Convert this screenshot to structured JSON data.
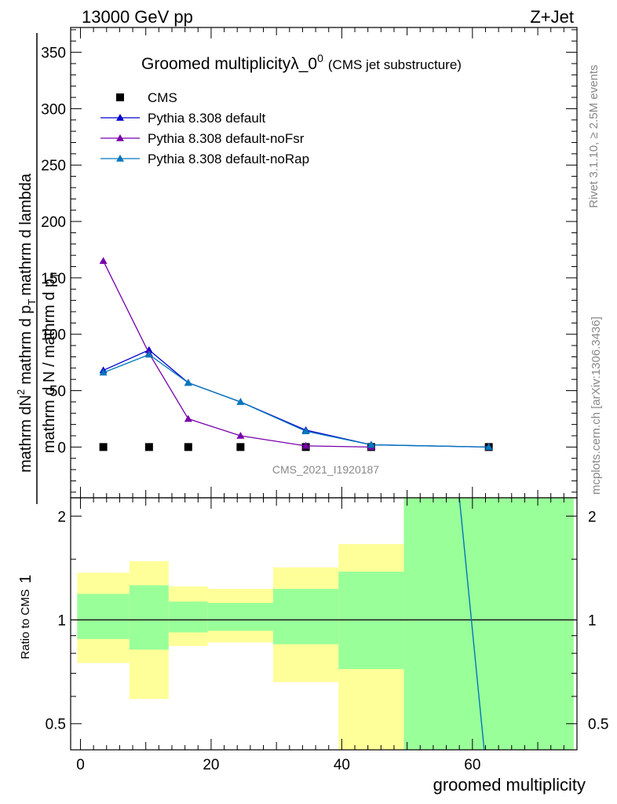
{
  "header": {
    "left": "13000 GeV pp",
    "right": "Z+Jet"
  },
  "title": {
    "main": "Groomed multiplicityλ_0",
    "sup": "0",
    "sub": "(CMS jet substructure)"
  },
  "ylabel": {
    "numerator": "mathrm dN",
    "numerator_sup": "2",
    "fraction_top_left": "1",
    "fraction_bottom": "mathrm d N / mathrm d p",
    "fraction_bottom_sub": "T",
    "denominator_text": "mathrm d p",
    "denominator_sub": "T",
    "denominator_tail": "mathrm d lambda",
    "full_label": "mathrm d N / mathrm d p_T mathrm d p_T mathrm d lambda"
  },
  "ratio_ylabel": "Ratio to CMS",
  "xlabel": "groomed multiplicity",
  "watermark": "CMS_2021_I1920187",
  "side_text": {
    "rivet": "Rivet 3.1.10, ≥ 2.5M events",
    "mcplots": "mcplots.cern.ch [arXiv:1306.3436]"
  },
  "legend": [
    {
      "label": "CMS",
      "marker": "square",
      "color": "#000000"
    },
    {
      "label": "Pythia 8.308 default",
      "marker": "triangle",
      "color": "#0000cc"
    },
    {
      "label": "Pythia 8.308 default-noFsr",
      "marker": "triangle",
      "color": "#7700aa"
    },
    {
      "label": "Pythia 8.308 default-noRap",
      "marker": "triangle",
      "color": "#0077bb"
    }
  ],
  "chart_data": {
    "type": "line",
    "main_panel": {
      "xlim": [
        -1.5,
        76
      ],
      "ylim": [
        -45,
        372
      ],
      "yticks": [
        0,
        50,
        100,
        150,
        200,
        250,
        300,
        350
      ],
      "xticks": [
        0,
        20,
        40,
        60
      ],
      "series": [
        {
          "name": "CMS",
          "kind": "points",
          "color": "#000000",
          "x": [
            3.5,
            10.5,
            16.5,
            24.5,
            34.5,
            44.5,
            62.5
          ],
          "y": [
            0,
            0,
            0,
            0,
            0,
            0,
            0
          ]
        },
        {
          "name": "Pythia 8.308 default",
          "kind": "line",
          "color": "#0000cc",
          "x": [
            3.5,
            10.5,
            16.5,
            24.5,
            34.5,
            44.5,
            62.5
          ],
          "y": [
            68,
            86,
            57,
            40,
            15,
            2,
            0
          ]
        },
        {
          "name": "Pythia 8.308 default-noFsr",
          "kind": "line",
          "color": "#7700aa",
          "x": [
            3.5,
            10.5,
            16.5,
            24.5,
            34.5,
            44.5
          ],
          "y": [
            165,
            83,
            25,
            10,
            1,
            0
          ]
        },
        {
          "name": "Pythia 8.308 default-noRap",
          "kind": "line",
          "color": "#0077bb",
          "x": [
            3.5,
            10.5,
            16.5,
            24.5,
            34.5,
            44.5,
            62.5
          ],
          "y": [
            66,
            82,
            57,
            40,
            14,
            2,
            0
          ]
        }
      ]
    },
    "ratio_panel": {
      "xlim": [
        -1.5,
        76
      ],
      "ylim": [
        0.42,
        2.26
      ],
      "yticks": [
        0.5,
        1,
        2
      ],
      "bands": [
        {
          "x0": -0.5,
          "x1": 7.5,
          "yellow": [
            0.75,
            1.37
          ],
          "green": [
            0.88,
            1.19
          ]
        },
        {
          "x0": 7.5,
          "x1": 13.5,
          "yellow": [
            0.59,
            1.48
          ],
          "green": [
            0.82,
            1.26
          ]
        },
        {
          "x0": 13.5,
          "x1": 19.5,
          "yellow": [
            0.84,
            1.25
          ],
          "green": [
            0.92,
            1.13
          ]
        },
        {
          "x0": 19.5,
          "x1": 29.5,
          "yellow": [
            0.86,
            1.23
          ],
          "green": [
            0.93,
            1.12
          ]
        },
        {
          "x0": 29.5,
          "x1": 39.5,
          "yellow": [
            0.66,
            1.42
          ],
          "green": [
            0.85,
            1.23
          ]
        },
        {
          "x0": 39.5,
          "x1": 49.5,
          "yellow": [
            0.35,
            1.66
          ],
          "green": [
            0.72,
            1.38
          ]
        },
        {
          "x0": 49.5,
          "x1": 75.5,
          "yellow": [
            0.35,
            2.4
          ],
          "green": [
            0.35,
            2.4
          ]
        }
      ],
      "lines": [
        {
          "name": "Pythia 8.308 default-noRap ratio",
          "color": "#0077bb",
          "x": [
            58.0,
            61.8
          ],
          "y": [
            2.4,
            0.4
          ]
        }
      ]
    }
  },
  "colors": {
    "yellow_band": "#ffff99",
    "green_band": "#99ff99",
    "frame": "#000000"
  }
}
